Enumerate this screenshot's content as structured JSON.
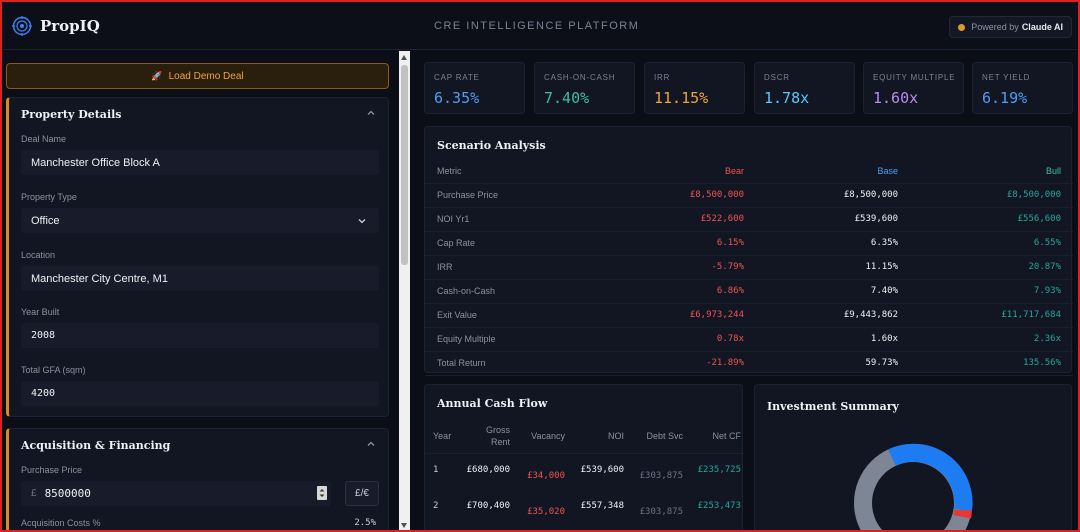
{
  "app": {
    "name": "PropIQ",
    "platform_title": "CRE INTELLIGENCE PLATFORM",
    "powered_prefix": "Powered by",
    "powered_brand": "Claude AI"
  },
  "left": {
    "demo_button": "Load Demo Deal",
    "property": {
      "title": "Property Details",
      "deal_name_label": "Deal Name",
      "deal_name": "Manchester Office Block A",
      "type_label": "Property Type",
      "type": "Office",
      "location_label": "Location",
      "location": "Manchester City Centre, M1",
      "year_label": "Year Built",
      "year": "2008",
      "gfa_label": "Total GFA (sqm)",
      "gfa": "4200"
    },
    "acq": {
      "title": "Acquisition & Financing",
      "price_label": "Purchase Price",
      "currency": "£",
      "price": "8500000",
      "toggle": "£/€",
      "costs_label": "Acquisition Costs %",
      "costs": "2.5%"
    }
  },
  "metrics": [
    {
      "label": "CAP RATE",
      "value": "6.35%",
      "color": "#4f9df7"
    },
    {
      "label": "CASH-ON-CASH",
      "value": "7.40%",
      "color": "#3fbf9f"
    },
    {
      "label": "IRR",
      "value": "11.15%",
      "color": "#f0a43a"
    },
    {
      "label": "DSCR",
      "value": "1.78x",
      "color": "#5bc8f5"
    },
    {
      "label": "EQUITY MULTIPLE",
      "value": "1.60x",
      "color": "#b98cf0"
    },
    {
      "label": "NET YIELD",
      "value": "6.19%",
      "color": "#4f9df7"
    }
  ],
  "scenario": {
    "title": "Scenario Analysis",
    "headers": [
      "Metric",
      "Bear",
      "Base",
      "Bull"
    ],
    "rows": [
      [
        "Purchase Price",
        "£8,500,000",
        "£8,500,000",
        "£8,500,000"
      ],
      [
        "NOI Yr1",
        "£522,600",
        "£539,600",
        "£556,600"
      ],
      [
        "Cap Rate",
        "6.15%",
        "6.35%",
        "6.55%"
      ],
      [
        "IRR",
        "-5.79%",
        "11.15%",
        "20.87%"
      ],
      [
        "Cash-on-Cash",
        "6.86%",
        "7.40%",
        "7.93%"
      ],
      [
        "Exit Value",
        "£6,973,244",
        "£9,443,862",
        "£11,717,684"
      ],
      [
        "Equity Multiple",
        "0.78x",
        "1.60x",
        "2.36x"
      ],
      [
        "Total Return",
        "-21.89%",
        "59.73%",
        "135.56%"
      ]
    ]
  },
  "cashflow": {
    "title": "Annual Cash Flow",
    "headers": {
      "year": "Year",
      "gross1": "Gross",
      "gross2": "Rent",
      "vacancy": "Vacancy",
      "noi": "NOI",
      "debt": "Debt Svc",
      "net": "Net CF"
    },
    "rows": [
      {
        "year": "1",
        "gross": "£680,000",
        "vacancy": "£34,000",
        "noi": "£539,600",
        "debt": "£303,875",
        "net": "£235,725"
      },
      {
        "year": "2",
        "gross": "£700,400",
        "vacancy": "£35,020",
        "noi": "£557,348",
        "debt": "£303,875",
        "net": "£253,473"
      }
    ]
  },
  "summary": {
    "title": "Investment Summary"
  },
  "colors": {
    "accent": "#d98a20",
    "bear": "#ef5350",
    "base": "#eef1f6",
    "bull": "#26a69a",
    "donut_blue": "#1e7cf2",
    "donut_grey": "#7e8696",
    "donut_red": "#e53935"
  }
}
